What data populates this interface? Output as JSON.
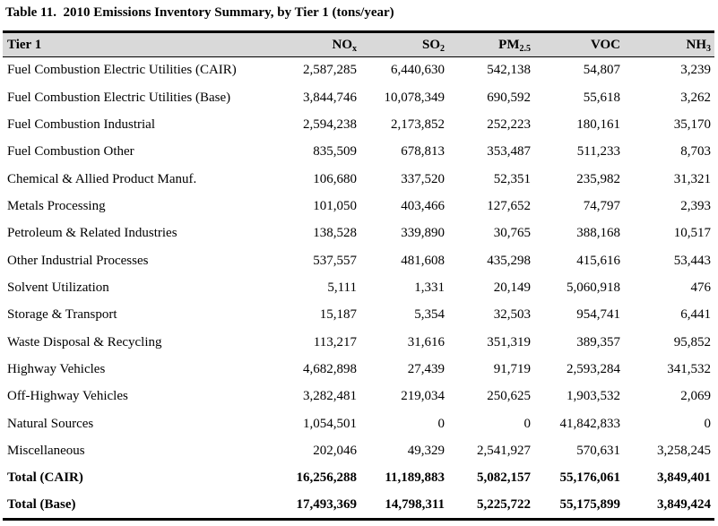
{
  "title": "Table 11.  2010 Emissions Inventory Summary, by Tier 1 (tons/year)",
  "table": {
    "headers": [
      {
        "text": "Tier 1"
      },
      {
        "text": "NO",
        "sub": "x"
      },
      {
        "text": "SO",
        "sub": "2"
      },
      {
        "text": "PM",
        "sub": "2.5"
      },
      {
        "text": "VOC"
      },
      {
        "text": "NH",
        "sub": "3"
      }
    ],
    "rows": [
      [
        "Fuel Combustion Electric Utilities (CAIR)",
        "2,587,285",
        "6,440,630",
        "542,138",
        "54,807",
        "3,239"
      ],
      [
        "Fuel Combustion Electric Utilities (Base)",
        "3,844,746",
        "10,078,349",
        "690,592",
        "55,618",
        "3,262"
      ],
      [
        "Fuel Combustion Industrial",
        "2,594,238",
        "2,173,852",
        "252,223",
        "180,161",
        "35,170"
      ],
      [
        "Fuel Combustion Other",
        "835,509",
        "678,813",
        "353,487",
        "511,233",
        "8,703"
      ],
      [
        "Chemical & Allied Product Manuf.",
        "106,680",
        "337,520",
        "52,351",
        "235,982",
        "31,321"
      ],
      [
        "Metals Processing",
        "101,050",
        "403,466",
        "127,652",
        "74,797",
        "2,393"
      ],
      [
        "Petroleum & Related Industries",
        "138,528",
        "339,890",
        "30,765",
        "388,168",
        "10,517"
      ],
      [
        "Other Industrial Processes",
        "537,557",
        "481,608",
        "435,298",
        "415,616",
        "53,443"
      ],
      [
        "Solvent Utilization",
        "5,111",
        "1,331",
        "20,149",
        "5,060,918",
        "476"
      ],
      [
        "Storage & Transport",
        "15,187",
        "5,354",
        "32,503",
        "954,741",
        "6,441"
      ],
      [
        "Waste Disposal & Recycling",
        "113,217",
        "31,616",
        "351,319",
        "389,357",
        "95,852"
      ],
      [
        "Highway Vehicles",
        "4,682,898",
        "27,439",
        "91,719",
        "2,593,284",
        "341,532"
      ],
      [
        "Off-Highway Vehicles",
        "3,282,481",
        "219,034",
        "250,625",
        "1,903,532",
        "2,069"
      ],
      [
        "Natural Sources",
        "1,054,501",
        "0",
        "0",
        "41,842,833",
        "0"
      ],
      [
        "Miscellaneous",
        "202,046",
        "49,329",
        "2,541,927",
        "570,631",
        "3,258,245"
      ]
    ],
    "total_rows": [
      [
        "Total (CAIR)",
        "16,256,288",
        "11,189,883",
        "5,082,157",
        "55,176,061",
        "3,849,401"
      ],
      [
        "Total (Base)",
        "17,493,369",
        "14,798,311",
        "5,225,722",
        "55,175,899",
        "3,849,424"
      ]
    ]
  }
}
